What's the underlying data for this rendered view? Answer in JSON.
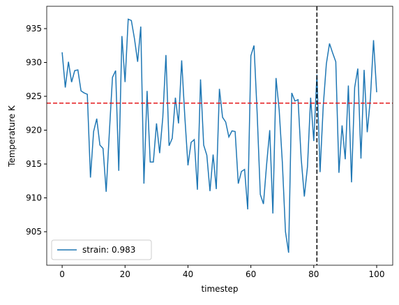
{
  "chart_data": {
    "type": "line",
    "xlabel": "timestep",
    "ylabel": "Temperature K",
    "x": [
      0,
      1,
      2,
      3,
      4,
      5,
      6,
      7,
      8,
      9,
      10,
      11,
      12,
      13,
      14,
      15,
      16,
      17,
      18,
      19,
      20,
      21,
      22,
      23,
      24,
      25,
      26,
      27,
      28,
      29,
      30,
      31,
      32,
      33,
      34,
      35,
      36,
      37,
      38,
      39,
      40,
      41,
      42,
      43,
      44,
      45,
      46,
      47,
      48,
      49,
      50,
      51,
      52,
      53,
      54,
      55,
      56,
      57,
      58,
      59,
      60,
      61,
      62,
      63,
      64,
      65,
      66,
      67,
      68,
      69,
      70,
      71,
      72,
      73,
      74,
      75,
      76,
      77,
      78,
      79,
      80,
      81,
      82,
      83,
      84,
      85,
      86,
      87,
      88,
      89,
      90,
      91,
      92,
      93,
      94,
      95,
      96,
      97,
      98,
      99,
      100
    ],
    "series": [
      {
        "name": "strain: 0.983",
        "color": "#1f77b4",
        "values": [
          931.5,
          926.3,
          930.1,
          927.1,
          928.8,
          928.9,
          925.8,
          925.5,
          925.3,
          913.0,
          919.8,
          921.7,
          917.8,
          917.3,
          910.9,
          919.6,
          927.8,
          928.8,
          914.0,
          933.9,
          927.1,
          936.4,
          936.2,
          933.5,
          930.1,
          935.3,
          912.1,
          925.8,
          915.3,
          915.3,
          921.0,
          916.6,
          921.9,
          931.1,
          917.7,
          918.8,
          924.8,
          921.0,
          930.3,
          922.0,
          914.8,
          918.2,
          918.6,
          911.2,
          927.5,
          917.8,
          916.3,
          911.0,
          916.4,
          911.3,
          926.1,
          921.9,
          921.2,
          919.0,
          919.9,
          919.8,
          912.1,
          913.9,
          914.2,
          908.3,
          931.0,
          932.5,
          922.5,
          910.5,
          909.1,
          914.9,
          920.0,
          907.7,
          927.7,
          923.0,
          915.3,
          905.0,
          901.9,
          925.5,
          924.3,
          924.5,
          915.8,
          910.2,
          914.6,
          924.8,
          918.4,
          928.2,
          913.8,
          923.5,
          929.8,
          932.8,
          931.4,
          930.1,
          913.7,
          920.7,
          915.7,
          926.6,
          912.3,
          926.3,
          929.1,
          915.8,
          928.9,
          919.7,
          924.7,
          933.3,
          925.6
        ]
      }
    ],
    "hline": {
      "value": 924,
      "color": "#e41a1c"
    },
    "vline": {
      "value": 81,
      "color": "#000000"
    },
    "xlim": [
      -4.9,
      105.1
    ],
    "ylim": [
      900.05,
      938.3
    ],
    "xticks": [
      0,
      20,
      40,
      60,
      80,
      100
    ],
    "yticks": [
      905,
      910,
      915,
      920,
      925,
      930,
      935
    ],
    "legend": "lower left"
  }
}
